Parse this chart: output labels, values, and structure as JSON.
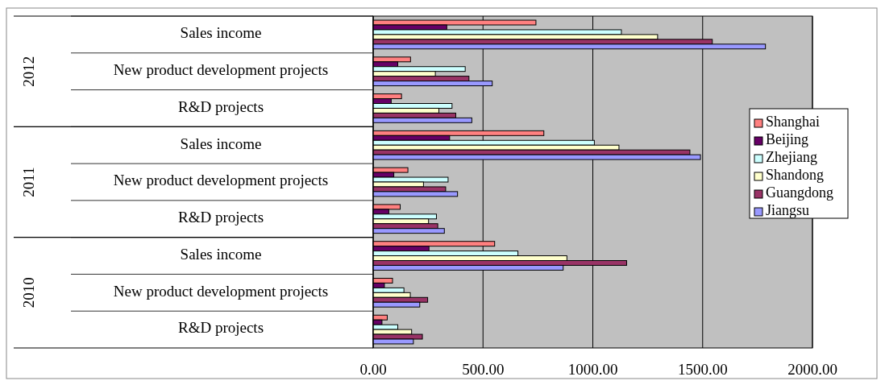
{
  "chart_data": {
    "type": "bar",
    "orientation": "horizontal",
    "categories": [
      "Sales income",
      "New product development projects",
      "R&D projects",
      "Sales income",
      "New product development projects",
      "R&D projects",
      "Sales income",
      "New product development projects",
      "R&D projects"
    ],
    "annotations": [
      "2012",
      "2011",
      "2010"
    ],
    "series": [
      {
        "name": "Shanghai",
        "color": "#ff8080",
        "values": [
          741,
          170,
          129,
          777,
          158,
          123,
          553,
          88,
          64
        ]
      },
      {
        "name": "Beijing",
        "color": "#660066",
        "values": [
          335,
          112,
          82,
          348,
          94,
          71,
          254,
          51,
          40
        ]
      },
      {
        "name": "Zhejiang",
        "color": "#ccffff",
        "values": [
          1130,
          419,
          359,
          1007,
          341,
          288,
          659,
          140,
          112
        ]
      },
      {
        "name": "Shandong",
        "color": "#ffffcc",
        "values": [
          1295,
          283,
          299,
          1119,
          229,
          252,
          882,
          169,
          175
        ]
      },
      {
        "name": "Guangdong",
        "color": "#993366",
        "values": [
          1544,
          436,
          376,
          1442,
          330,
          294,
          1154,
          248,
          224
        ]
      },
      {
        "name": "Jiangsu",
        "color": "#9999ff",
        "values": [
          1786,
          542,
          449,
          1490,
          384,
          324,
          865,
          212,
          183
        ]
      }
    ],
    "xlim": [
      0,
      2000
    ],
    "xticks": [
      {
        "value": 0,
        "label": "0.00"
      },
      {
        "value": 500,
        "label": "500.00"
      },
      {
        "value": 1000,
        "label": "1000.00"
      },
      {
        "value": 1500,
        "label": "1500.00"
      },
      {
        "value": 2000,
        "label": "2000.00"
      }
    ],
    "grid": "x",
    "legend": "right"
  }
}
